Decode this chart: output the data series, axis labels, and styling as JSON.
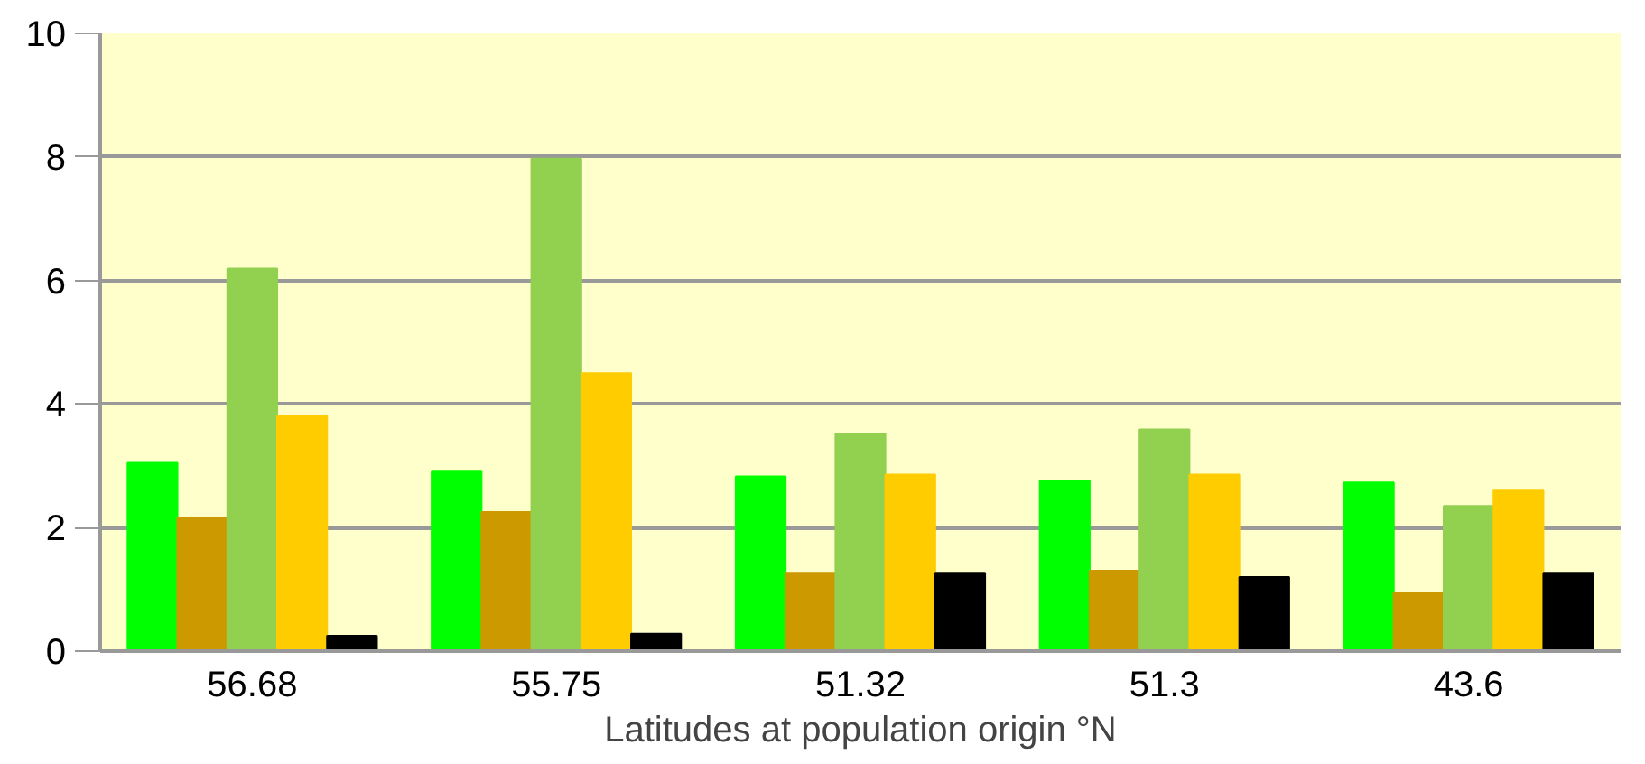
{
  "chart_data": {
    "type": "bar",
    "xlabel": "Latitudes at population origin °N",
    "categories": [
      "56.68",
      "55.75",
      "51.32",
      "51.3",
      "43.6"
    ],
    "series": [
      {
        "color": "#00ff00",
        "values": [
          3.05,
          2.92,
          2.83,
          2.76,
          2.73
        ]
      },
      {
        "color": "#cc9900",
        "values": [
          2.16,
          2.25,
          1.27,
          1.3,
          0.95
        ]
      },
      {
        "color": "#92d050",
        "values": [
          6.19,
          7.97,
          3.52,
          3.59,
          2.35
        ]
      },
      {
        "color": "#ffcc00",
        "values": [
          3.81,
          4.5,
          2.86,
          2.86,
          2.6
        ]
      },
      {
        "color": "#000000",
        "values": [
          0.25,
          0.28,
          1.27,
          1.2,
          1.27
        ]
      }
    ],
    "ylim": [
      0,
      10
    ],
    "yticks": [
      0,
      2,
      4,
      6,
      8,
      10
    ],
    "grid": "y"
  }
}
